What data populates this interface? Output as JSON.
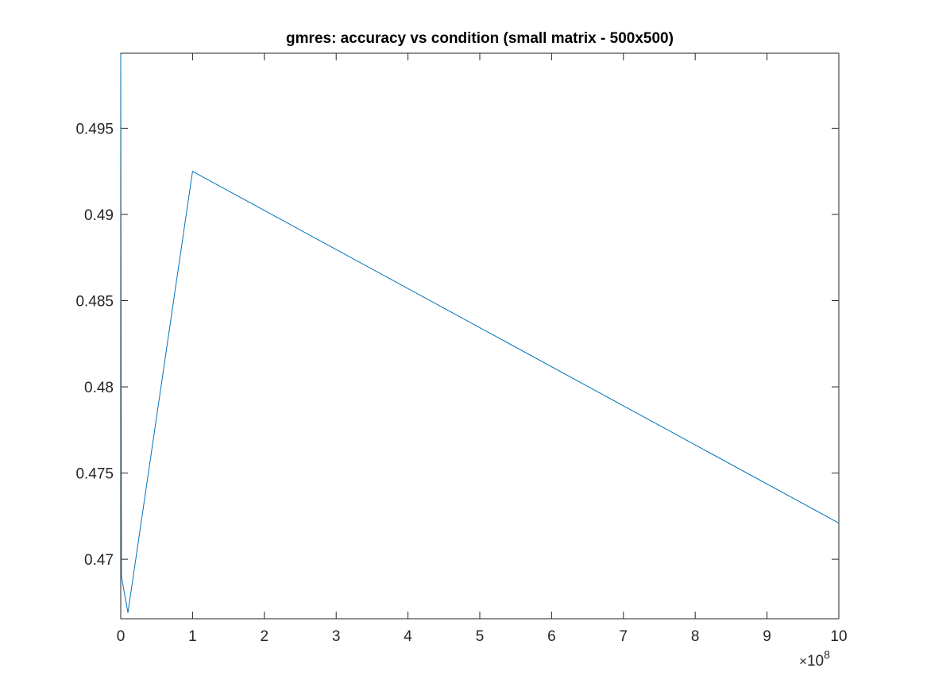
{
  "chart_data": {
    "type": "line",
    "title": "gmres: accuracy vs condition (small matrix - 500x500)",
    "xlabel": "",
    "ylabel": "",
    "x_multiplier": {
      "times": "×",
      "base": "10",
      "exponent": "8"
    },
    "xlim": [
      0,
      10
    ],
    "ylim": [
      0.46655,
      0.49935
    ],
    "x_ticks": [
      0,
      1,
      2,
      3,
      4,
      5,
      6,
      7,
      8,
      9,
      10
    ],
    "x_tick_labels": [
      "0",
      "1",
      "2",
      "3",
      "4",
      "5",
      "6",
      "7",
      "8",
      "9",
      "10"
    ],
    "y_ticks": [
      0.47,
      0.475,
      0.48,
      0.485,
      0.49,
      0.495
    ],
    "y_tick_labels": [
      "0.47",
      "0.475",
      "0.48",
      "0.485",
      "0.49",
      "0.495"
    ],
    "grid": false,
    "box": true,
    "series": [
      {
        "color": "#0072BD",
        "x": [
          0,
          0.01,
          0.1,
          1,
          10
        ],
        "y": [
          0.4993,
          0.469,
          0.4669,
          0.4925,
          0.4721
        ]
      }
    ]
  }
}
